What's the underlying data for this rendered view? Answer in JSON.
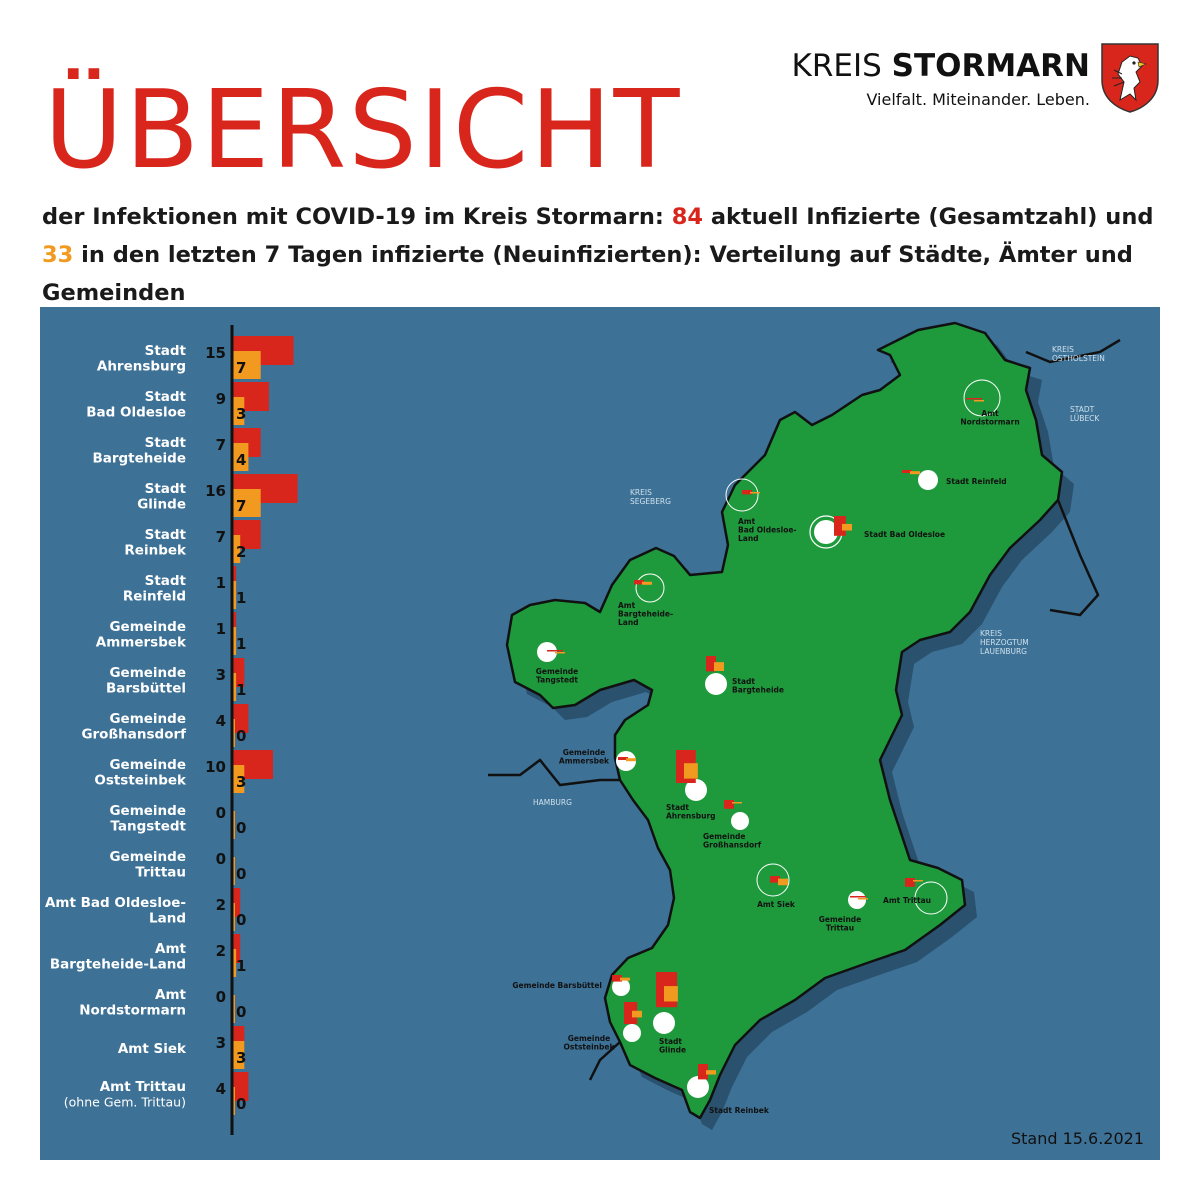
{
  "header": {
    "title": "ÜBERSICHT",
    "brand_light": "KREIS",
    "brand_bold": "STORMARN",
    "tagline": "Vielfalt. Miteinander. Leben.",
    "subtitle_part1": "der Infektionen mit COVID-19 im Kreis Stormarn: ",
    "total_infected": "84",
    "subtitle_part2": " aktuell Infizierte (Gesamtzahl) und ",
    "new_infected": "33",
    "subtitle_part3": " in den letzten 7 Tagen infizierte (Neuinfizierten): Verteilung auf Städte, Ämter und Gemeinden"
  },
  "colors": {
    "red": "#d9261c",
    "orange": "#f29a1f",
    "panel_blue": "#3d7196",
    "map_green": "#1e9a3c",
    "white": "#ffffff"
  },
  "footer": {
    "stand": "Stand 15.6.2021"
  },
  "chart_data": {
    "type": "bar",
    "orientation": "horizontal",
    "categories": [
      "Stadt Ahrensburg",
      "Stadt Bad Oldesloe",
      "Stadt Bargteheide",
      "Stadt Glinde",
      "Stadt Reinbek",
      "Stadt Reinfeld",
      "Gemeinde Ammersbek",
      "Gemeinde Barsbüttel",
      "Gemeinde Großhansdorf",
      "Gemeinde Oststeinbek",
      "Gemeinde Tangstedt",
      "Gemeinde Trittau",
      "Amt Bad Oldesloe-Land",
      "Amt Bargteheide-Land",
      "Amt Nordstormarn",
      "Amt Siek",
      "Amt Trittau"
    ],
    "label_lines": [
      [
        "Stadt",
        "Ahrensburg"
      ],
      [
        "Stadt",
        "Bad Oldesloe"
      ],
      [
        "Stadt",
        "Bargteheide"
      ],
      [
        "Stadt",
        "Glinde"
      ],
      [
        "Stadt",
        "Reinbek"
      ],
      [
        "Stadt",
        "Reinfeld"
      ],
      [
        "Gemeinde",
        "Ammersbek"
      ],
      [
        "Gemeinde",
        "Barsbüttel"
      ],
      [
        "Gemeinde",
        "Großhansdorf"
      ],
      [
        "Gemeinde",
        "Oststeinbek"
      ],
      [
        "Gemeinde",
        "Tangstedt"
      ],
      [
        "Gemeinde",
        "Trittau"
      ],
      [
        "Amt Bad Oldesloe-",
        "Land"
      ],
      [
        "Amt",
        "Bargteheide-Land"
      ],
      [
        "Amt",
        "Nordstormarn"
      ],
      [
        "Amt Siek"
      ],
      [
        "Amt Trittau",
        "(ohne Gem. Trittau)"
      ]
    ],
    "series": [
      {
        "values": [
          15,
          9,
          7,
          16,
          7,
          1,
          1,
          3,
          4,
          10,
          0,
          0,
          2,
          2,
          0,
          3,
          4
        ]
      },
      {
        "values": [
          7,
          3,
          4,
          7,
          2,
          1,
          1,
          1,
          0,
          3,
          0,
          0,
          0,
          1,
          0,
          3,
          0
        ]
      }
    ]
  },
  "map": {
    "places": [
      {
        "label": [
          "Amt",
          "Nordstormarn"
        ],
        "anchor": "middle",
        "total": 0,
        "new": 0
      },
      {
        "label": [
          "Stadt Reinfeld"
        ],
        "anchor": "start",
        "total": 1,
        "new": 1
      },
      {
        "label": [
          "Amt",
          "Bad Oldesloe-",
          "Land"
        ],
        "anchor": "start",
        "total": 2,
        "new": 0
      },
      {
        "label": [
          "Stadt Bad Oldesloe"
        ],
        "anchor": "start",
        "total": 9,
        "new": 3
      },
      {
        "label": [
          "Amt",
          "Bargteheide-",
          "Land"
        ],
        "anchor": "start",
        "total": 2,
        "new": 1
      },
      {
        "label": [
          "Gemeinde",
          "Tangstedt"
        ],
        "anchor": "middle",
        "total": 0,
        "new": 0
      },
      {
        "label": [
          "Stadt",
          "Bargteheide"
        ],
        "anchor": "start",
        "total": 7,
        "new": 4
      },
      {
        "label": [
          "Gemeinde",
          "Ammersbek"
        ],
        "anchor": "middle",
        "total": 1,
        "new": 1
      },
      {
        "label": [
          "Stadt",
          "Ahrensburg"
        ],
        "anchor": "start",
        "total": 15,
        "new": 7
      },
      {
        "label": [
          "Gemeinde",
          "Großhansdorf"
        ],
        "anchor": "start",
        "total": 4,
        "new": 0
      },
      {
        "label": [
          "Amt Siek"
        ],
        "anchor": "middle",
        "total": 3,
        "new": 3
      },
      {
        "label": [
          "Gemeinde",
          "Trittau"
        ],
        "anchor": "middle",
        "total": 0,
        "new": 0
      },
      {
        "label": [
          "Amt Trittau"
        ],
        "anchor": "middle",
        "total": 4,
        "new": 0
      },
      {
        "label": [
          "Gemeinde Barsbüttel"
        ],
        "anchor": "end",
        "total": 3,
        "new": 1
      },
      {
        "label": [
          "Stadt",
          "Glinde"
        ],
        "anchor": "start",
        "total": 16,
        "new": 7
      },
      {
        "label": [
          "Gemeinde",
          "Oststeinbek"
        ],
        "anchor": "middle",
        "total": 10,
        "new": 3
      },
      {
        "label": [
          "Stadt Reinbek"
        ],
        "anchor": "start",
        "total": 7,
        "new": 2
      }
    ],
    "regions": [
      {
        "label": [
          "KREIS",
          "OSTHOLSTEIN"
        ]
      },
      {
        "label": [
          "STADT",
          "LÜBECK"
        ]
      },
      {
        "label": [
          "KREIS",
          "SEGEBERG"
        ]
      },
      {
        "label": [
          "KREIS",
          "HERZOGTUM",
          "LAUENBURG"
        ]
      },
      {
        "label": [
          "HAMBURG"
        ]
      }
    ]
  }
}
